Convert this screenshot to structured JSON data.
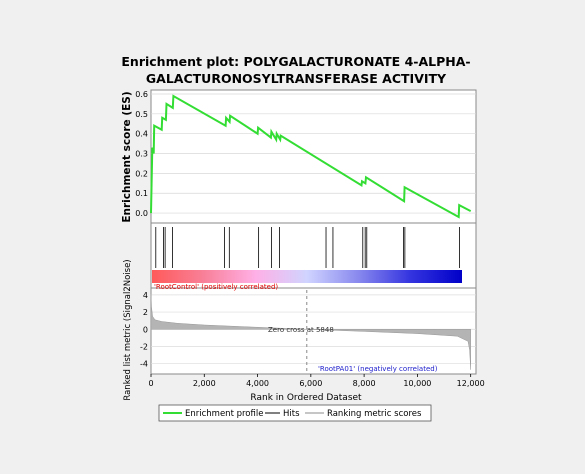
{
  "chart_data": {
    "type": "line",
    "title": [
      "Enrichment plot: POLYGALACTURONATE 4-ALPHA-",
      "GALACTURONOSYLTRANSFERASE ACTIVITY"
    ],
    "panels": {
      "es": {
        "ylabel": "Enrichment score (ES)",
        "yticks": [
          "0.0",
          "0.1",
          "0.2",
          "0.3",
          "0.4",
          "0.5",
          "0.6"
        ],
        "ylim": [
          -0.05,
          0.62
        ],
        "x": [
          0,
          50,
          100,
          120,
          400,
          420,
          560,
          580,
          820,
          840,
          2800,
          2820,
          2950,
          2970,
          4000,
          4020,
          4500,
          4520,
          4700,
          4720,
          4850,
          4870,
          7900,
          7920,
          8050,
          8070,
          9500,
          9520,
          11550,
          11570,
          12000
        ],
        "es": [
          0.0,
          0.33,
          0.3,
          0.44,
          0.42,
          0.48,
          0.47,
          0.55,
          0.53,
          0.59,
          0.44,
          0.48,
          0.46,
          0.49,
          0.4,
          0.43,
          0.38,
          0.41,
          0.37,
          0.4,
          0.37,
          0.39,
          0.14,
          0.16,
          0.15,
          0.18,
          0.06,
          0.13,
          -0.02,
          0.04,
          0.01
        ],
        "line_color": "#33dd33"
      },
      "hits": {
        "positions": [
          180,
          470,
          530,
          810,
          2760,
          2940,
          4040,
          4520,
          4820,
          6570,
          6830,
          7950,
          8040,
          8100,
          9480,
          9530,
          11580
        ]
      },
      "heatmap": {
        "gradient": [
          "#ff5a5a",
          "#f88098",
          "#ffb0e6",
          "#d0d4ff",
          "#8888ee",
          "#3434e0",
          "#0000c8"
        ]
      },
      "ranked": {
        "ylabel": "Ranked list metric (Signal2Noise)",
        "yticks": [
          "-4",
          "-2",
          "0",
          "2",
          "4"
        ],
        "ylim": [
          -5.2,
          4.8
        ],
        "positive_label": "'RootControl' (positively correlated)",
        "negative_label": "'RootPA01' (negatively correlated)",
        "zero_cross_label": "Zero cross at 5848",
        "zero_cross": 5848,
        "profile": {
          "x": [
            0,
            20,
            60,
            150,
            400,
            1000,
            2000,
            3500,
            5848,
            8000,
            10000,
            11500,
            11900,
            11960,
            12000
          ],
          "y": [
            4.1,
            2.6,
            1.5,
            1.1,
            0.9,
            0.7,
            0.5,
            0.3,
            0.0,
            -0.25,
            -0.5,
            -0.8,
            -1.4,
            -2.4,
            -4.7
          ]
        }
      }
    },
    "xlabel": "Rank in Ordered Dataset",
    "xticks": [
      "0",
      "2,000",
      "4,000",
      "6,000",
      "8,000",
      "10,000",
      "12,000"
    ],
    "xlim": [
      0,
      12200
    ],
    "legend": {
      "items": [
        "Enrichment profile",
        "Hits",
        "Ranking metric scores"
      ],
      "colors": [
        "#33dd33",
        "#000000",
        "#b4b4b4"
      ]
    }
  }
}
